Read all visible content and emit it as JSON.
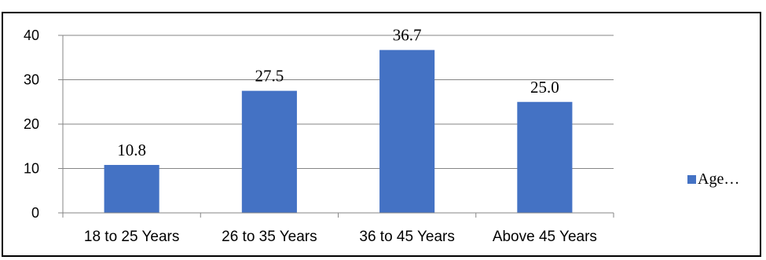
{
  "chart_data": {
    "type": "bar",
    "categories": [
      "18 to 25 Years",
      "26 to 35 Years",
      "36 to 45 Years",
      "Above 45 Years"
    ],
    "series": [
      {
        "name": "Age…",
        "values": [
          10.8,
          27.5,
          36.7,
          25.0
        ],
        "labels": [
          "10.8",
          "27.5",
          "36.7",
          "25.0"
        ]
      }
    ],
    "title": "",
    "xlabel": "",
    "ylabel": "",
    "ylim": [
      0,
      40
    ],
    "yticks": [
      0,
      10,
      20,
      30,
      40
    ],
    "grid": true,
    "legend_position": "right",
    "colors": {
      "bar": "#4472c4",
      "grid": "#868686",
      "axis": "#868686"
    }
  }
}
